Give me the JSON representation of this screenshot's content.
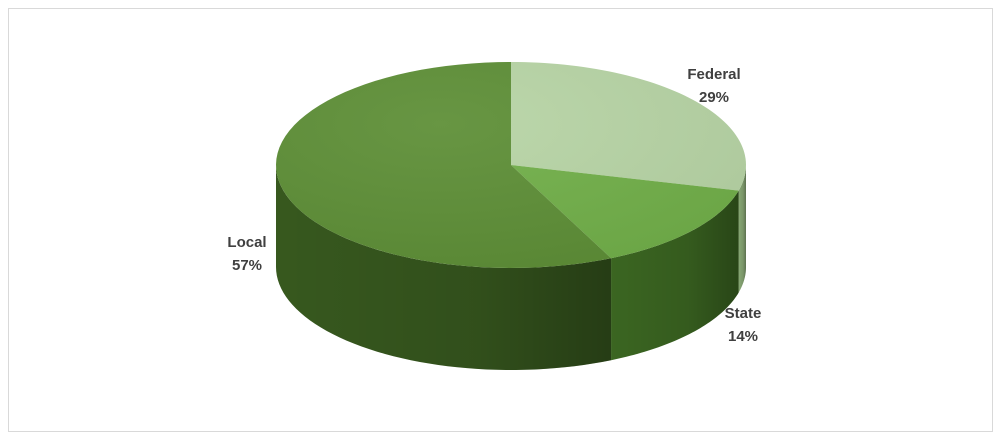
{
  "chart_data": {
    "type": "pie",
    "style": "3d",
    "categories": [
      "Federal",
      "State",
      "Local"
    ],
    "values": [
      29,
      14,
      57
    ],
    "value_suffix": "%",
    "colors": [
      "#b8d5a6",
      "#72b04a",
      "#5e8f37"
    ],
    "side_colors": [
      "#8fb07b",
      "#3e6b23",
      "#3a5d20"
    ],
    "title": "",
    "legend": "none",
    "data_labels": [
      {
        "category": "Federal",
        "percent": "29%"
      },
      {
        "category": "State",
        "percent": "14%"
      },
      {
        "category": "Local",
        "percent": "57%"
      }
    ]
  }
}
